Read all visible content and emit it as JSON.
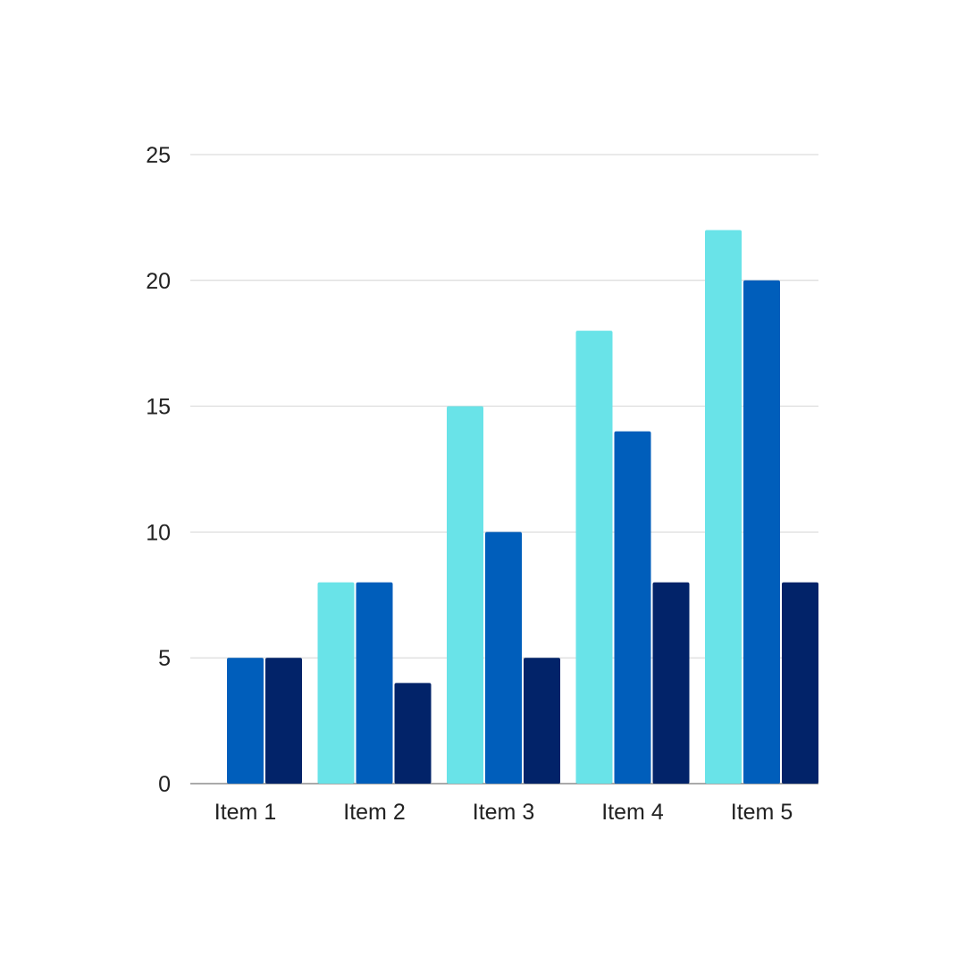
{
  "chart_data": {
    "type": "bar",
    "categories": [
      "Item 1",
      "Item 2",
      "Item 3",
      "Item 4",
      "Item 5"
    ],
    "series": [
      {
        "values": [
          0,
          8,
          15,
          18,
          22
        ],
        "color": "#69e3e8"
      },
      {
        "values": [
          5,
          8,
          10,
          14,
          20
        ],
        "color": "#005ebb"
      },
      {
        "values": [
          5,
          4,
          5,
          8,
          8
        ],
        "color": "#022369"
      }
    ],
    "y_ticks": [
      0,
      5,
      10,
      15,
      20,
      25
    ],
    "ylim": [
      0,
      25
    ],
    "grid": true,
    "legend": "none",
    "title": "",
    "xlabel": "",
    "ylabel": ""
  }
}
